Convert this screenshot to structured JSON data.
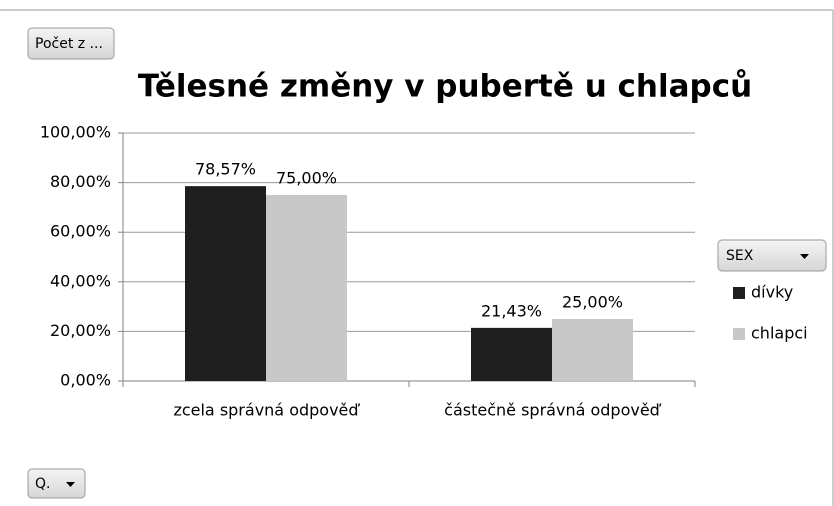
{
  "chart_data": {
    "type": "bar",
    "title": "Tělesné změny v pubertě u chlapců",
    "filter_button": "Počet z ...",
    "axis_button": "Q.",
    "legend_title": "SEX",
    "categories": [
      "zcela správná odpověď",
      "částečně správná odpověď"
    ],
    "series": [
      {
        "name": "dívky",
        "color": "#1e1e1e",
        "values": [
          78.57,
          21.43
        ],
        "value_labels": [
          "78,57%",
          "21,43%"
        ]
      },
      {
        "name": "chlapci",
        "color": "#c8c8c8",
        "values": [
          75.0,
          25.0
        ],
        "value_labels": [
          "75,00%",
          "25,00%"
        ]
      }
    ],
    "ylim": [
      0,
      100
    ],
    "yticks": [
      {
        "value": 0,
        "label": "0,00%"
      },
      {
        "value": 20,
        "label": "20,00%"
      },
      {
        "value": 40,
        "label": "40,00%"
      },
      {
        "value": 60,
        "label": "60,00%"
      },
      {
        "value": 80,
        "label": "80,00%"
      },
      {
        "value": 100,
        "label": "100,00%"
      }
    ],
    "grid": true,
    "legend_position": "right"
  }
}
